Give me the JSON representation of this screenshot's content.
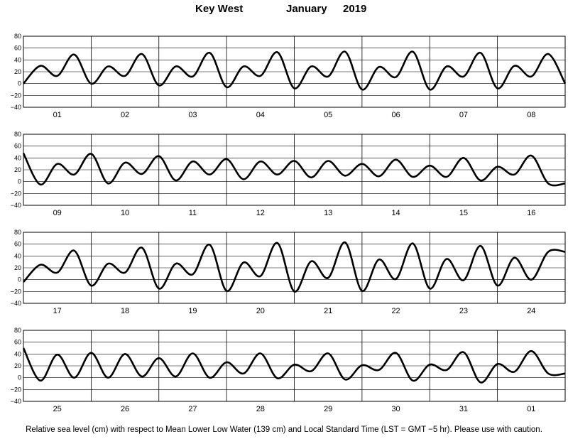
{
  "header": {
    "station": "Key West",
    "month": "January",
    "year": "2019"
  },
  "caption": "Relative sea level (cm) with respect to Mean Lower Low Water (139 cm) and Local Standard Time (LST = GMT −5 hr). Please use with caution.",
  "colors": {
    "line": "#000000",
    "grid": "#000000",
    "background": "#ffffff"
  },
  "chart_data": {
    "type": "line",
    "ylim": [
      -40,
      80
    ],
    "yticks": [
      -40,
      -20,
      0,
      20,
      40,
      60,
      80
    ],
    "grid": true,
    "units": "cm",
    "days_per_panel": 8,
    "samples_per_day": 4,
    "panels": [
      {
        "day_labels": [
          "01",
          "02",
          "03",
          "04",
          "05",
          "06",
          "07",
          "08"
        ],
        "series": [
          {
            "values": [
              0,
              30,
              13,
              49,
              0,
              29,
              13,
              50,
              -3,
              29,
              12,
              52,
              -6,
              29,
              13,
              53,
              -8,
              29,
              12,
              54,
              -10,
              28,
              11,
              54,
              -10,
              29,
              12,
              52,
              -8,
              30,
              12,
              50,
              0
            ]
          }
        ]
      },
      {
        "day_labels": [
          "09",
          "10",
          "11",
          "12",
          "13",
          "14",
          "15",
          "16"
        ],
        "series": [
          {
            "values": [
              48,
              -5,
              30,
              12,
              47,
              -3,
              32,
              13,
              43,
              2,
              34,
              12,
              38,
              4,
              34,
              12,
              35,
              7,
              35,
              10,
              30,
              9,
              37,
              8,
              27,
              8,
              40,
              2,
              25,
              12,
              44,
              -3,
              -3
            ]
          }
        ]
      },
      {
        "day_labels": [
          "17",
          "18",
          "19",
          "20",
          "21",
          "22",
          "23",
          "24"
        ],
        "series": [
          {
            "values": [
              -4,
              25,
              12,
              49,
              -10,
              27,
              12,
              54,
              -15,
              27,
              9,
              59,
              -19,
              29,
              6,
              62,
              -20,
              31,
              3,
              63,
              -19,
              34,
              1,
              61,
              -15,
              35,
              -1,
              57,
              -10,
              37,
              0,
              47,
              47
            ]
          }
        ]
      },
      {
        "day_labels": [
          "25",
          "26",
          "27",
          "28",
          "29",
          "30",
          "31",
          "01"
        ],
        "series": [
          {
            "values": [
              50,
              -5,
              39,
              0,
              42,
              0,
              40,
              2,
              33,
              2,
              41,
              0,
              26,
              7,
              41,
              -1,
              22,
              11,
              41,
              -3,
              21,
              13,
              42,
              -5,
              22,
              13,
              43,
              -8,
              23,
              10,
              45,
              7,
              7
            ]
          }
        ]
      }
    ]
  }
}
